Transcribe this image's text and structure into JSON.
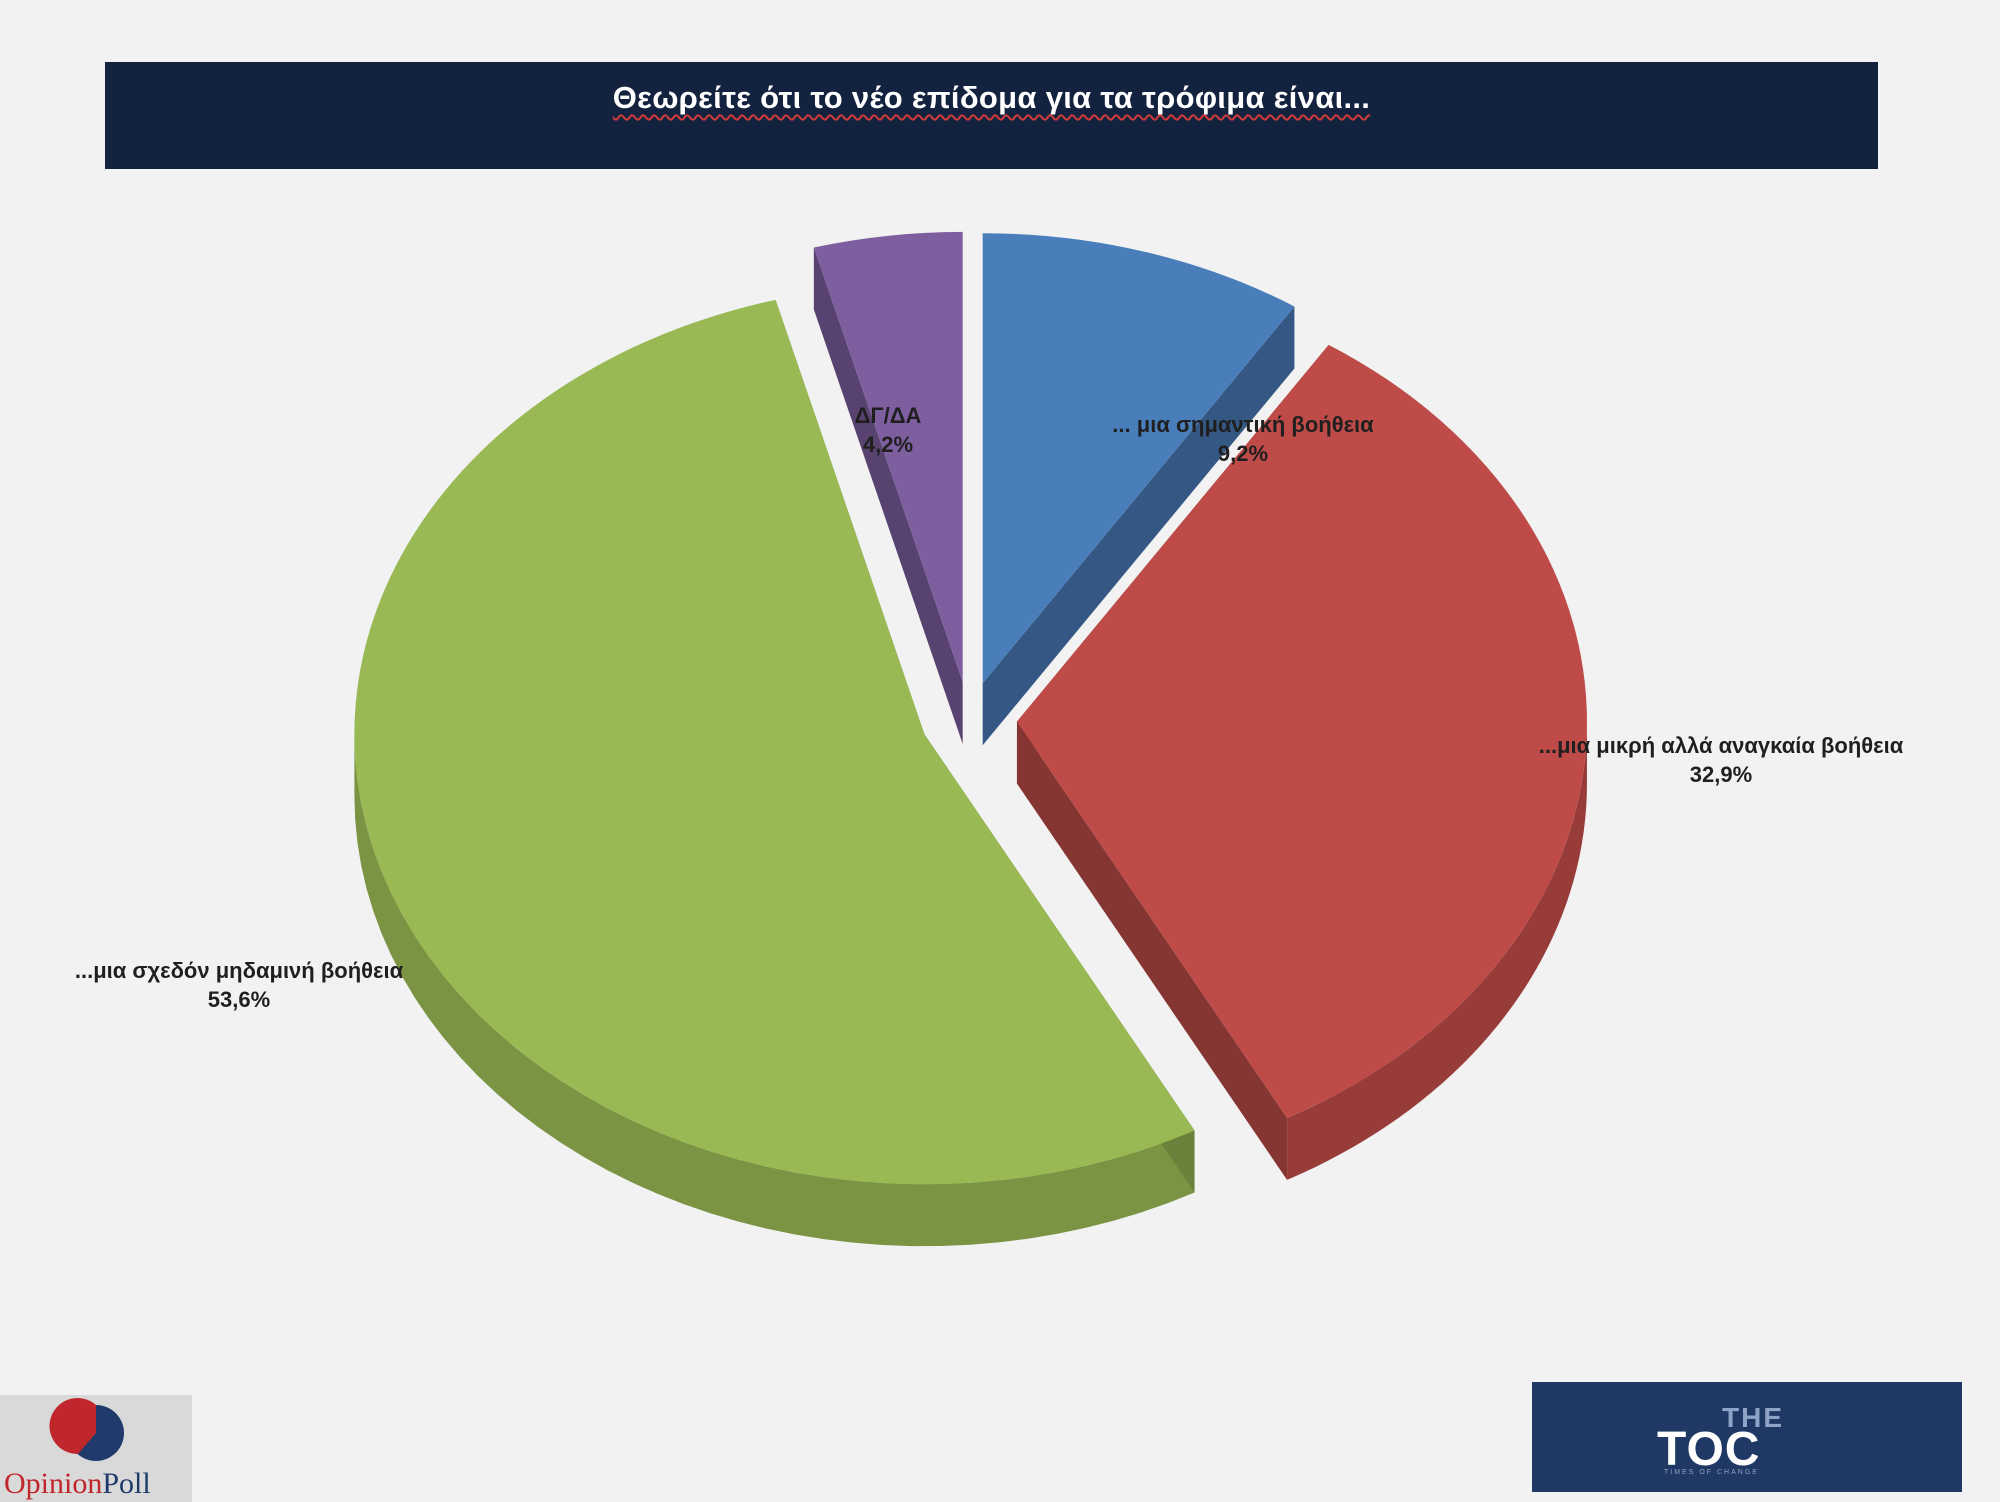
{
  "title": "Θεωρείτε ότι το νέο επίδομα για τα τρόφιμα είναι...",
  "chart_data": {
    "type": "pie",
    "title": "Θεωρείτε ότι το νέο επίδομα για τα τρόφιμα είναι...",
    "exploded": true,
    "three_d": true,
    "slices": [
      {
        "label": "... μια σημαντική βοήθεια",
        "value": 9.2,
        "display": "9,2%",
        "color": "#4a7ebb"
      },
      {
        "label": "...μια μικρή αλλά αναγκαία βοήθεια",
        "value": 32.9,
        "display": "32,9%",
        "color": "#be4b48"
      },
      {
        "label": "...μια σχεδόν μηδαμινή βοήθεια",
        "value": 53.6,
        "display": "53,6%",
        "color": "#98b954"
      },
      {
        "label": "ΔΓ/ΔΑ",
        "value": 4.2,
        "display": "4,2%",
        "color": "#7d5fa0"
      }
    ]
  },
  "logos": {
    "opinion_poll": {
      "part1": "Opinion",
      "part2": "Poll"
    },
    "the_toc": {
      "the": "THE",
      "main": "TOC",
      "tagline": "TIMES OF CHANGE"
    }
  }
}
